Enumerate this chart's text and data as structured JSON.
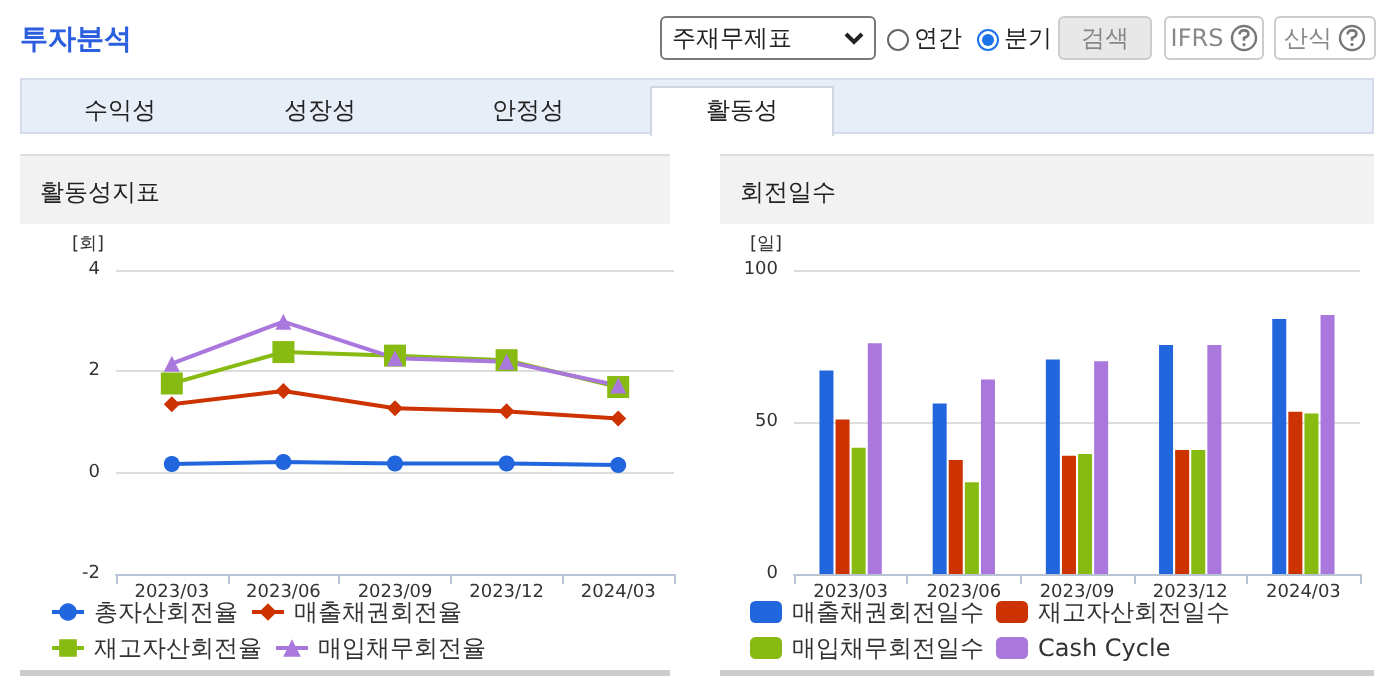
{
  "chart_data": [
    {
      "type": "other",
      "title": "투자분석",
      "annotations": [
        "주재무제표",
        "연간",
        "분기",
        "검색",
        "IFRS",
        "산식",
        "수익성",
        "성장성",
        "안정성",
        "활동성"
      ]
    },
    {
      "type": "line",
      "title": "활동성지표",
      "ylabel": "[회]",
      "categories": [
        "2023/03",
        "2023/06",
        "2023/09",
        "2023/12",
        "2024/03"
      ],
      "ylim": [
        -2,
        4
      ],
      "yticks": [
        -2,
        0,
        2,
        4
      ],
      "grid": "y",
      "legend": "bottom",
      "series": [
        {
          "name": "총자산회전율",
          "color": "#2266dd",
          "marker": "circle",
          "values": [
            0.17,
            0.21,
            0.18,
            0.18,
            0.15
          ]
        },
        {
          "name": "매출채권회전율",
          "color": "#cc3300",
          "marker": "diamond",
          "values": [
            1.35,
            1.61,
            1.27,
            1.21,
            1.07
          ]
        },
        {
          "name": "재고자산회전율",
          "color": "#88bb11",
          "marker": "square",
          "values": [
            1.76,
            2.38,
            2.31,
            2.22,
            1.69
          ]
        },
        {
          "name": "매입채무회전율",
          "color": "#aa77dd",
          "marker": "triangle",
          "values": [
            2.15,
            2.98,
            2.26,
            2.19,
            1.72
          ]
        }
      ]
    },
    {
      "type": "bar",
      "title": "회전일수",
      "ylabel": "[일]",
      "categories": [
        "2023/03",
        "2023/06",
        "2023/09",
        "2023/12",
        "2024/03"
      ],
      "ylim": [
        0,
        100
      ],
      "yticks": [
        0,
        50,
        100
      ],
      "grid": "y",
      "legend": "bottom",
      "series": [
        {
          "name": "매출채권회전일수",
          "color": "#2266dd",
          "values": [
            66.9,
            56.1,
            70.6,
            75.3,
            83.9
          ]
        },
        {
          "name": "재고자산회전일수",
          "color": "#cc3300",
          "values": [
            50.8,
            37.5,
            38.9,
            40.8,
            53.4
          ]
        },
        {
          "name": "매입채무회전일수",
          "color": "#88bb11",
          "values": [
            41.5,
            30.2,
            39.5,
            40.8,
            52.8
          ]
        },
        {
          "name": "Cash Cycle",
          "color": "#aa77dd",
          "values": [
            75.9,
            64.0,
            70.0,
            75.3,
            85.2
          ]
        }
      ]
    }
  ]
}
